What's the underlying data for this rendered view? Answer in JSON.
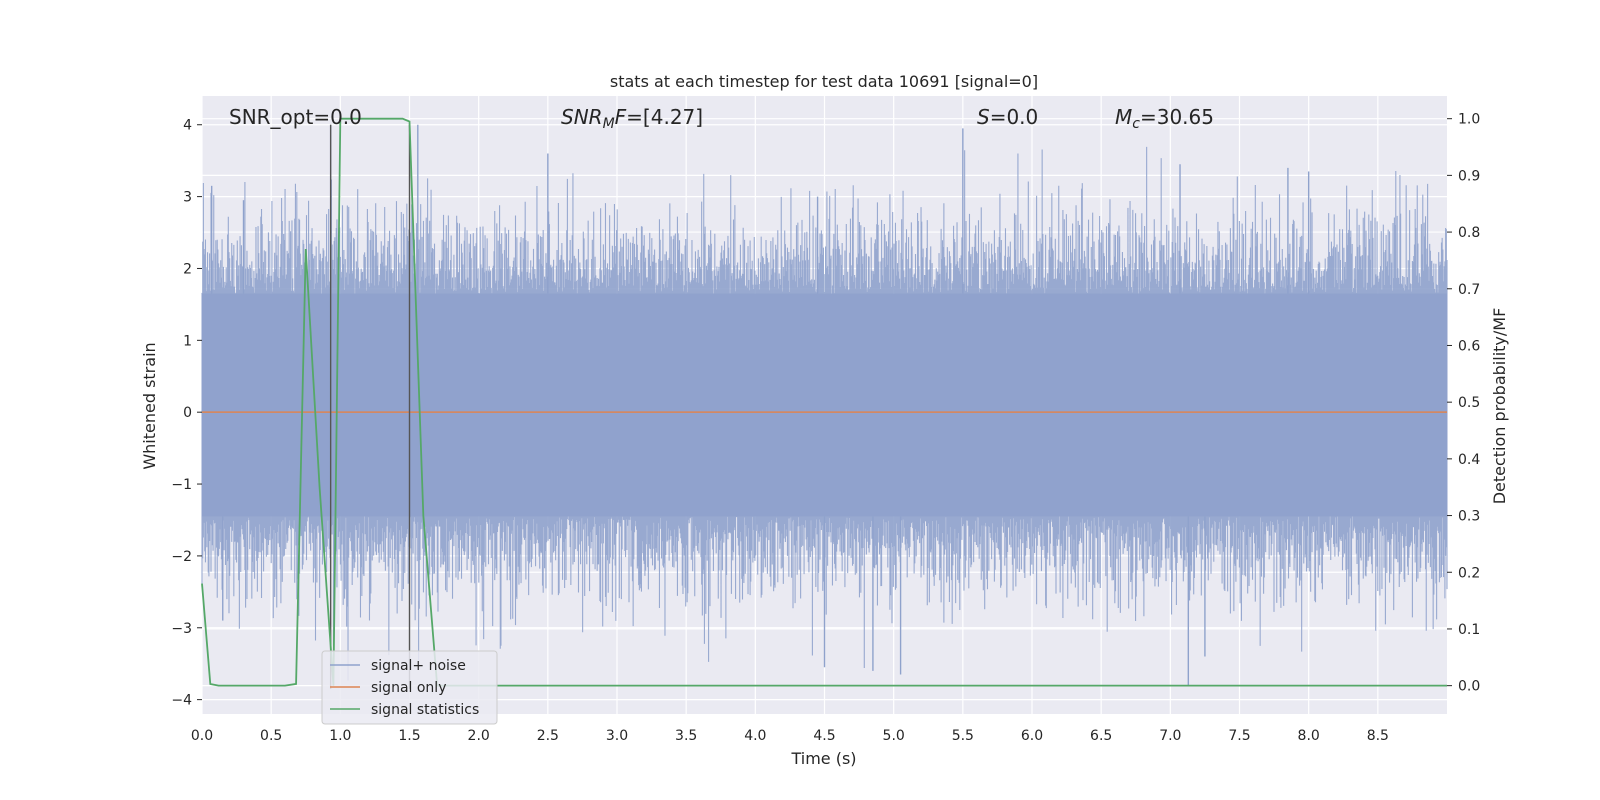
{
  "chart_data": {
    "type": "line",
    "title": "stats at each timestep for test data 10691 [signal=0]",
    "xlabel": "Time (s)",
    "ylabel": "Whitened strain",
    "ylabel_right": "Detection probability/MF",
    "xlim": [
      0.0,
      9.0
    ],
    "ylim": [
      -4.2,
      4.4
    ],
    "ylim_right": [
      -0.05,
      1.04
    ],
    "x_ticks": [
      "0.0",
      "0.5",
      "1.0",
      "1.5",
      "2.0",
      "2.5",
      "3.0",
      "3.5",
      "4.0",
      "4.5",
      "5.0",
      "5.5",
      "6.0",
      "6.5",
      "7.0",
      "7.5",
      "8.0",
      "8.5"
    ],
    "y_ticks": [
      "4",
      "3",
      "2",
      "1",
      "0",
      "−1",
      "−2",
      "−3",
      "−4"
    ],
    "y_ticks_right": [
      "1.0",
      "0.9",
      "0.8",
      "0.7",
      "0.6",
      "0.5",
      "0.4",
      "0.3",
      "0.2",
      "0.1",
      "0.0"
    ],
    "grid": true,
    "legend_position": "lower-left",
    "annotations": {
      "snr_opt": "SNR_opt=0.0",
      "snr_mf_main": "SNR",
      "snr_mf_sub": "M",
      "snr_mf_rest": "F",
      "snr_mf_value": "=[4.27]",
      "s_symbol": "S",
      "s_value": "=0.0",
      "mc_symbol": "M",
      "mc_sub": "c",
      "mc_value": "=30.65"
    },
    "series": [
      {
        "name": "signal+ noise",
        "axis": "left",
        "color": "#8fa2cc",
        "noise_band": [
          -1.45,
          1.65
        ],
        "peaks": [
          {
            "x": 0.07,
            "y": 3.15
          },
          {
            "x": 0.3,
            "y": 2.95
          },
          {
            "x": 0.93,
            "y": 4.0
          },
          {
            "x": 1.56,
            "y": 4.0
          },
          {
            "x": 2.5,
            "y": 3.6
          },
          {
            "x": 4.45,
            "y": 3.0
          },
          {
            "x": 5.5,
            "y": 3.95
          },
          {
            "x": 7.07,
            "y": 3.45
          },
          {
            "x": 7.85,
            "y": 3.4
          },
          {
            "x": 8.0,
            "y": 3.35
          },
          {
            "x": 4.5,
            "y": -3.55
          },
          {
            "x": 4.85,
            "y": -3.6
          },
          {
            "x": 5.05,
            "y": -3.65
          },
          {
            "x": 7.13,
            "y": -3.8
          },
          {
            "x": 7.25,
            "y": -3.4
          },
          {
            "x": 0.15,
            "y": -2.9
          }
        ]
      },
      {
        "name": "signal only",
        "axis": "left",
        "color": "#dd8452",
        "x": [
          0.0,
          9.0
        ],
        "y": [
          0.0,
          0.0
        ]
      },
      {
        "name": "signal statistics",
        "axis": "right",
        "color": "#55a868",
        "x": [
          0.0,
          0.06,
          0.12,
          0.3,
          0.6,
          0.68,
          0.75,
          0.85,
          0.95,
          1.0,
          1.45,
          1.5,
          1.6,
          1.7,
          9.0
        ],
        "y": [
          0.18,
          0.003,
          0.0,
          0.0,
          0.0,
          0.003,
          0.77,
          0.35,
          0.0,
          1.0,
          1.0,
          0.995,
          0.3,
          0.0,
          0.0
        ]
      }
    ],
    "vertical_markers": [
      0.93,
      1.5
    ]
  }
}
